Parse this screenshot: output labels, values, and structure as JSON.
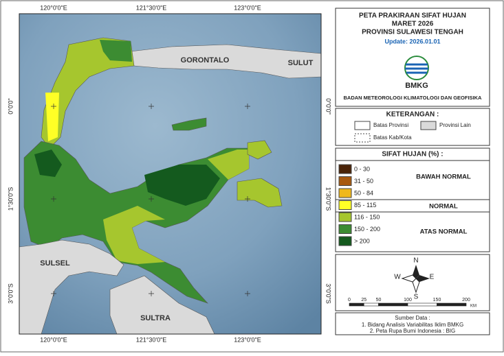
{
  "map": {
    "lon_labels": [
      "120°0'0\"E",
      "121°30'0\"E",
      "123°0'0\"E"
    ],
    "lat_labels": [
      "0°0'0\"",
      "1°30'0\"S",
      "3°0'0\"S"
    ],
    "place_labels": [
      "GORONTALO",
      "SULUT",
      "SULSEL",
      "SULTRA"
    ]
  },
  "header": {
    "title_lines": [
      "PETA PRAKIRAAN SIFAT HUJAN",
      "MARET 2026",
      "PROVINSI SULAWESI TENGAH"
    ],
    "update": "Update: 2026.01.01",
    "logo_text": "BMKG",
    "agency": "BADAN METEOROLOGI KLIMATOLOGI DAN GEOFISIKA"
  },
  "keterangan": {
    "title": "KETERANGAN :",
    "items": [
      "Batas Provinsi",
      "Provinsi Lain",
      "Batas Kab/Kota"
    ]
  },
  "legend": {
    "title": "SIFAT HUJAN (%) :",
    "classes": [
      {
        "label": "0 - 30",
        "color": "#4a2308"
      },
      {
        "label": "31 - 50",
        "color": "#a85a10"
      },
      {
        "label": "50 - 84",
        "color": "#f0b81c"
      },
      {
        "label": "85 - 115",
        "color": "#ffff26"
      },
      {
        "label": "116 - 150",
        "color": "#a6c62e"
      },
      {
        "label": "150 - 200",
        "color": "#3c8c32"
      },
      {
        "label": "> 200",
        "color": "#145a1e"
      }
    ],
    "groups": [
      "BAWAH NORMAL",
      "NORMAL",
      "ATAS NORMAL"
    ]
  },
  "compass": [
    "N",
    "S",
    "E",
    "W"
  ],
  "scale": {
    "ticks": [
      0,
      25,
      50,
      100,
      150,
      200
    ],
    "unit": "KM"
  },
  "source": {
    "title": "Sumber Data :",
    "lines": [
      "1. Bidang Analisis Variabilitas Iklim BMKG",
      "2. Peta Rupa Bumi Indonesia : BIG"
    ]
  }
}
